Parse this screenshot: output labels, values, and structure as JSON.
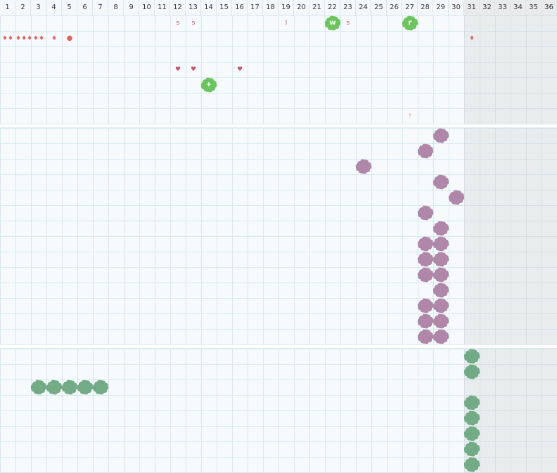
{
  "columns": [
    "1",
    "2",
    "3",
    "4",
    "5",
    "6",
    "7",
    "8",
    "9",
    "10",
    "11",
    "12",
    "13",
    "14",
    "15",
    "16",
    "17",
    "18",
    "19",
    "20",
    "21",
    "22",
    "23",
    "24",
    "25",
    "26",
    "27",
    "28",
    "29",
    "30",
    "31",
    "32",
    "33",
    "34",
    "35",
    "36"
  ],
  "colors": {
    "red_marker": "#e06666",
    "pink_marker": "#c2556b",
    "orange_marker": "#f08a5d",
    "green_block": "#6cc45c",
    "purple_block": "#b087a8",
    "teal_block": "#73ab87",
    "disabled_area": "#e3e3e3",
    "grid_line": "#d6e8f0"
  },
  "section1": {
    "markers": [
      {
        "col": 1,
        "row": 2,
        "glyph": "♦♦",
        "icon": "drop-pair-icon",
        "color": "red_marker"
      },
      {
        "col": 2,
        "row": 2,
        "glyph": "♦♦♦",
        "icon": "drop-cluster-icon",
        "color": "red_marker"
      },
      {
        "col": 3,
        "row": 2,
        "glyph": "♦♦",
        "icon": "drop-pair-icon",
        "color": "red_marker"
      },
      {
        "col": 4,
        "row": 2,
        "glyph": "♦",
        "icon": "drop-icon",
        "color": "red_marker"
      },
      {
        "col": 5,
        "row": 2,
        "glyph": "●",
        "icon": "dot-icon",
        "color": "red_marker"
      },
      {
        "col": 31,
        "row": 2,
        "glyph": "♦",
        "icon": "drop-icon",
        "color": "red_marker"
      },
      {
        "col": 12,
        "row": 1,
        "glyph": "s",
        "icon": "letter-s-marker",
        "color": "pink_marker"
      },
      {
        "col": 13,
        "row": 1,
        "glyph": "s",
        "icon": "letter-s-marker",
        "color": "pink_marker"
      },
      {
        "col": 19,
        "row": 1,
        "glyph": "l",
        "icon": "letter-l-marker",
        "color": "pink_marker"
      },
      {
        "col": 23,
        "row": 1,
        "glyph": "s",
        "icon": "letter-s-marker",
        "color": "pink_marker"
      },
      {
        "col": 12,
        "row": 4,
        "glyph": "♥",
        "icon": "heart-icon",
        "color": "pink_marker"
      },
      {
        "col": 13,
        "row": 4,
        "glyph": "♥",
        "icon": "heart-icon",
        "color": "pink_marker"
      },
      {
        "col": 16,
        "row": 4,
        "glyph": "♥",
        "icon": "heart-icon",
        "color": "pink_marker"
      },
      {
        "col": 27,
        "row": 7,
        "glyph": "!",
        "icon": "exclamation-marker",
        "color": "orange_marker"
      }
    ],
    "blocks": [
      {
        "col": 22,
        "row": 1,
        "label": "w"
      },
      {
        "col": 27,
        "row": 1,
        "label": "r"
      },
      {
        "col": 14,
        "row": 5,
        "label": "+"
      }
    ]
  },
  "section2": {
    "blocks": [
      {
        "col": 29,
        "row": 1
      },
      {
        "col": 28,
        "row": 2
      },
      {
        "col": 24,
        "row": 3
      },
      {
        "col": 29,
        "row": 4
      },
      {
        "col": 30,
        "row": 5
      },
      {
        "col": 28,
        "row": 6
      },
      {
        "col": 29,
        "row": 7
      },
      {
        "col": 28,
        "row": 8
      },
      {
        "col": 29,
        "row": 8
      },
      {
        "col": 28,
        "row": 9
      },
      {
        "col": 29,
        "row": 9
      },
      {
        "col": 28,
        "row": 10
      },
      {
        "col": 29,
        "row": 10
      },
      {
        "col": 29,
        "row": 11
      },
      {
        "col": 28,
        "row": 12
      },
      {
        "col": 29,
        "row": 12
      },
      {
        "col": 28,
        "row": 13
      },
      {
        "col": 29,
        "row": 13
      },
      {
        "col": 28,
        "row": 14
      },
      {
        "col": 29,
        "row": 14
      }
    ]
  },
  "section3": {
    "blocks": [
      {
        "col": 31,
        "row": 1
      },
      {
        "col": 31,
        "row": 2
      },
      {
        "col": 3,
        "row": 3
      },
      {
        "col": 4,
        "row": 3
      },
      {
        "col": 5,
        "row": 3
      },
      {
        "col": 6,
        "row": 3
      },
      {
        "col": 7,
        "row": 3
      },
      {
        "col": 31,
        "row": 4
      },
      {
        "col": 31,
        "row": 5
      },
      {
        "col": 31,
        "row": 6
      },
      {
        "col": 31,
        "row": 7
      },
      {
        "col": 31,
        "row": 8
      }
    ]
  }
}
